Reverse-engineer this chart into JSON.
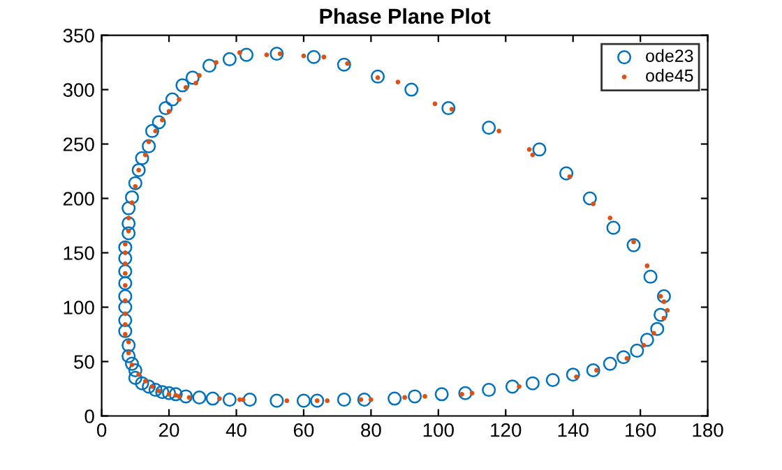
{
  "chart_data": {
    "type": "scatter",
    "title": "Phase Plane Plot",
    "xlim": [
      0,
      180
    ],
    "ylim": [
      0,
      350
    ],
    "xticks": [
      0,
      20,
      40,
      60,
      80,
      100,
      120,
      140,
      160,
      180
    ],
    "yticks": [
      0,
      50,
      100,
      150,
      200,
      250,
      300,
      350
    ],
    "grid": false,
    "legend": "top right",
    "marker": "circle",
    "series": [
      {
        "name": "ode23",
        "color": "#0072bd",
        "x": [
          10,
          12,
          14,
          16,
          18,
          20,
          22,
          25,
          29,
          33,
          38,
          44,
          52,
          60,
          64,
          72,
          78,
          87,
          93,
          101,
          108,
          115,
          122,
          128,
          134,
          140,
          146,
          151,
          155,
          159,
          162,
          165,
          166,
          167,
          163,
          158,
          152,
          145,
          138,
          130,
          115,
          103,
          92,
          82,
          72,
          63,
          52,
          43,
          38,
          32,
          27,
          24,
          21,
          19,
          17,
          15,
          14,
          12,
          11,
          10,
          9,
          8,
          8,
          8,
          7,
          7,
          7,
          7,
          7,
          7,
          7,
          7,
          8,
          8,
          9,
          10
        ],
        "values": [
          35,
          30,
          27,
          24,
          22,
          21,
          20,
          18,
          17,
          16,
          15,
          15,
          14,
          14,
          14,
          15,
          15,
          16,
          18,
          20,
          21,
          24,
          27,
          30,
          33,
          38,
          42,
          48,
          54,
          60,
          70,
          80,
          93,
          110,
          128,
          157,
          173,
          200,
          223,
          245,
          265,
          283,
          300,
          312,
          323,
          330,
          333,
          332,
          328,
          322,
          311,
          304,
          291,
          283,
          270,
          262,
          248,
          237,
          226,
          214,
          201,
          191,
          177,
          168,
          155,
          145,
          133,
          122,
          110,
          100,
          88,
          78,
          65,
          55,
          48,
          42
        ]
      },
      {
        "name": "ode45",
        "color": "#d95319",
        "x": [
          8,
          8,
          9,
          11,
          13,
          15,
          17,
          20,
          22,
          23,
          26,
          35,
          41,
          42,
          55,
          64,
          67,
          77,
          80,
          90,
          96,
          107,
          110,
          124,
          141,
          147,
          156,
          161,
          164,
          167,
          168,
          167,
          166,
          162,
          158,
          151,
          146,
          139,
          128,
          127,
          118,
          104,
          99,
          88,
          82,
          73,
          66,
          60,
          53,
          49,
          41,
          34,
          29,
          28,
          25,
          23,
          20,
          18,
          16,
          14,
          13,
          11,
          10,
          9,
          8,
          8,
          7,
          7,
          7,
          7,
          7,
          7,
          7,
          7,
          7
        ],
        "values": [
          68,
          58,
          47,
          38,
          32,
          27,
          23,
          20,
          19,
          18,
          17,
          16,
          15,
          15,
          14,
          14,
          14,
          15,
          15,
          17,
          18,
          20,
          21,
          27,
          36,
          42,
          53,
          65,
          76,
          90,
          97,
          105,
          110,
          138,
          160,
          182,
          195,
          220,
          240,
          245,
          262,
          282,
          287,
          307,
          311,
          324,
          330,
          331,
          333,
          332,
          334,
          325,
          313,
          306,
          302,
          291,
          280,
          272,
          262,
          252,
          240,
          226,
          211,
          196,
          182,
          170,
          158,
          150,
          140,
          131,
          120,
          106,
          94,
          84,
          75
        ]
      }
    ]
  }
}
